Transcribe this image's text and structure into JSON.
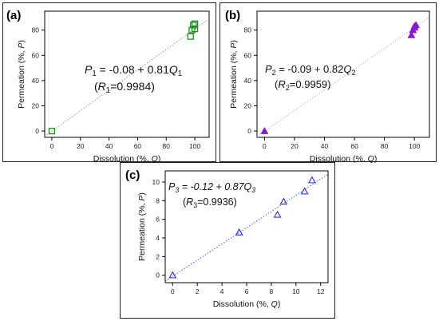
{
  "chart_data": [
    {
      "type": "scatter",
      "panel_label": "(a)",
      "xlabel_prefix": "Dissolution (%, ",
      "xlabel_var": "Q",
      "xlabel_suffix": ")",
      "ylabel_prefix": "Permeation (%, ",
      "ylabel_var": "P",
      "ylabel_suffix": ")",
      "xlim": [
        -5,
        110
      ],
      "ylim": [
        -5,
        95
      ],
      "xticks": [
        0,
        20,
        40,
        60,
        80,
        100
      ],
      "yticks": [
        0,
        20,
        40,
        60,
        80
      ],
      "series": [
        {
          "marker": "square",
          "color": "#1a8f1a",
          "points": [
            [
              0,
              0
            ],
            [
              97,
              75
            ],
            [
              98,
              80
            ],
            [
              99,
              84
            ],
            [
              100,
              81
            ],
            [
              100,
              85
            ]
          ]
        }
      ],
      "fit": {
        "slope": 0.81,
        "intercept": -0.08,
        "style": "dotted",
        "color": "#999999"
      },
      "equation": {
        "var": "P",
        "sub": "1",
        "text": " = -0.08 + 0.81",
        "xvar": "Q",
        "xsub": "1"
      },
      "r_label": {
        "open": "(",
        "var": "R",
        "sub": "1",
        "text": "=0.9984)"
      }
    },
    {
      "type": "scatter",
      "panel_label": "(b)",
      "xlabel_prefix": "Dissolution (%, ",
      "xlabel_var": "Q",
      "xlabel_suffix": ")",
      "ylabel_prefix": "Permeation (%, ",
      "ylabel_var": "P",
      "ylabel_suffix": ")",
      "xlim": [
        -5,
        110
      ],
      "ylim": [
        -5,
        95
      ],
      "xticks": [
        0,
        20,
        40,
        60,
        80,
        100
      ],
      "yticks": [
        0,
        20,
        40,
        60,
        80
      ],
      "series": [
        {
          "marker": "triangle-filled",
          "color": "#8a17d6",
          "points": [
            [
              0,
              0
            ],
            [
              98,
              76
            ],
            [
              99,
              80
            ],
            [
              100,
              83
            ],
            [
              100,
              82
            ],
            [
              101,
              84
            ]
          ]
        }
      ],
      "fit": {
        "slope": 0.82,
        "intercept": -0.09,
        "style": "dotted",
        "color": "#bbbbbb"
      },
      "equation": {
        "var": "P",
        "sub": "2",
        "text": " = -0.09 + 0.82",
        "xvar": "Q",
        "xsub": "2"
      },
      "r_label": {
        "open": "(",
        "var": "R",
        "sub": "2",
        "text": "=0.9959)"
      }
    },
    {
      "type": "scatter",
      "panel_label": "(c)",
      "xlabel_prefix": "Dissolution (%, ",
      "xlabel_var": "Q",
      "xlabel_suffix": ")",
      "ylabel_prefix": "Permeation (%, ",
      "ylabel_var": "P",
      "ylabel_suffix": ")",
      "xlim": [
        -0.6,
        12.6
      ],
      "ylim": [
        -0.8,
        11.2
      ],
      "xticks": [
        0,
        2,
        4,
        6,
        8,
        10,
        12
      ],
      "yticks": [
        0,
        2,
        4,
        6,
        8,
        10
      ],
      "series": [
        {
          "marker": "triangle-open",
          "color": "#2b2bd9",
          "points": [
            [
              0,
              0
            ],
            [
              5.4,
              4.6
            ],
            [
              8.5,
              6.5
            ],
            [
              9.0,
              7.9
            ],
            [
              10.7,
              9.0
            ],
            [
              11.3,
              10.2
            ]
          ]
        }
      ],
      "fit": {
        "slope": 0.87,
        "intercept": -0.12,
        "style": "dotted",
        "color": "#4a5ad6"
      },
      "equation": {
        "var": "P",
        "sub": "3",
        "text": " = -0.12 + 0.87",
        "xvar": "Q",
        "xsub": "3",
        "italic": true
      },
      "r_label": {
        "open": "(",
        "var": "R",
        "sub": "3",
        "text": "=0.9936)"
      }
    }
  ]
}
